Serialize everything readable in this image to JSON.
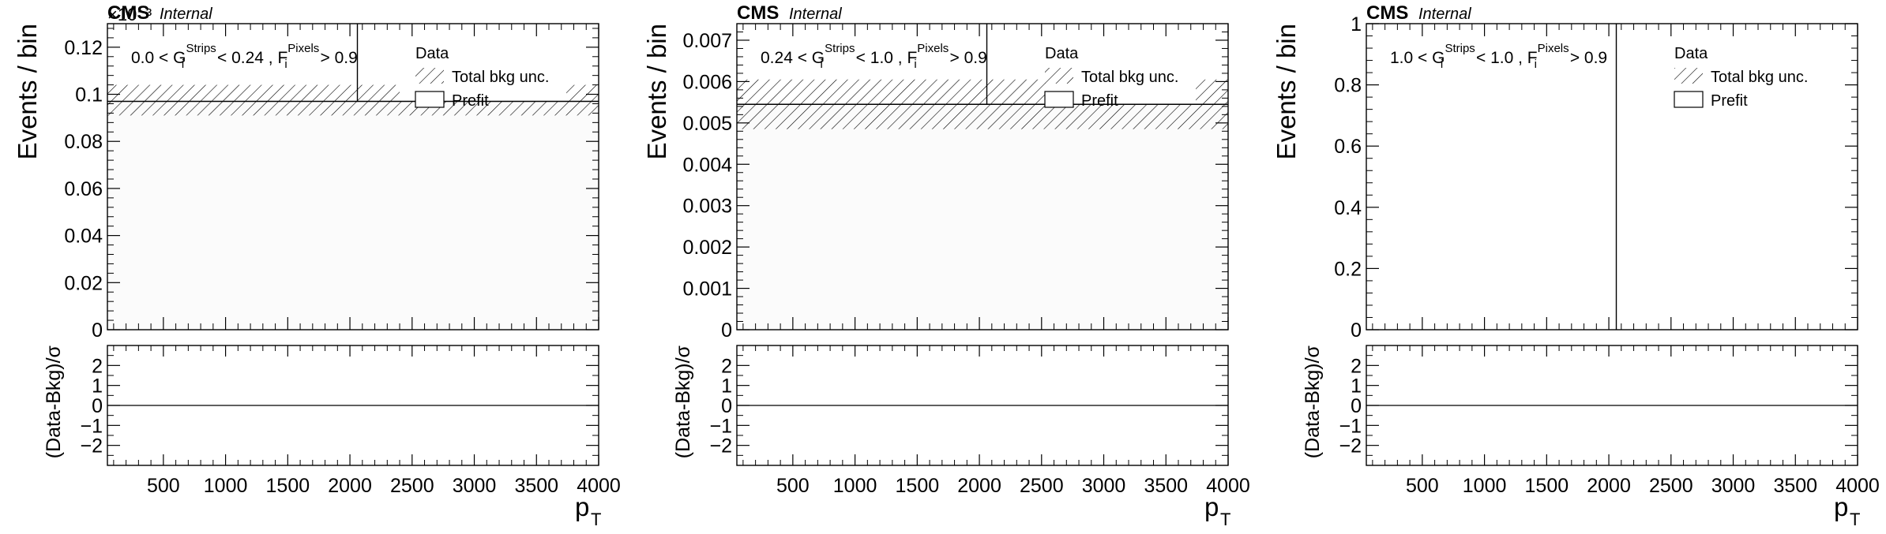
{
  "chart_data": [
    {
      "type": "bar",
      "experiment": "CMS",
      "status": "Internal",
      "exponent_label": "×10⁻³",
      "region_label": "0.0 < G_i^Strips < 0.24 , F_i^Pixels > 0.9",
      "region_parts": {
        "a": "0.0 < G",
        "sub1": "i",
        "sup1": "Strips",
        "b": " < 0.24 , F",
        "sub2": "i",
        "sup2": "Pixels",
        "c": " > 0.9"
      },
      "ylabel": "Events / bin",
      "xlabel": "p",
      "xlabel_sub": "T",
      "ratio_ylabel": "(Data-Bkg)/σ",
      "xlim": [
        50,
        4000
      ],
      "ylim": [
        0,
        0.13
      ],
      "yticks": [
        0,
        0.02,
        0.04,
        0.06,
        0.08,
        0.1,
        0.12
      ],
      "ytick_labels": [
        "0",
        "0.02",
        "0.04",
        "0.06",
        "0.08",
        "0.1",
        "0.12"
      ],
      "xticks": [
        500,
        1000,
        1500,
        2000,
        2500,
        3000,
        3500,
        4000
      ],
      "xtick_labels": [
        "500",
        "1000",
        "1500",
        "2000",
        "2500",
        "3000",
        "3500",
        "4000"
      ],
      "ratio_ylim": [
        -3,
        3
      ],
      "ratio_yticks": [
        -2,
        -1,
        0,
        1,
        2
      ],
      "ratio_ytick_labels": [
        "−2",
        "−1",
        "0",
        "1",
        "2"
      ],
      "prefit_value": 0.097,
      "unc_band": [
        0.091,
        0.104
      ],
      "band_gap": [
        2400,
        3740
      ],
      "data_line_x": 2060,
      "legend": [
        "Data",
        "Total bkg unc.",
        "Prefit"
      ],
      "legend_placement": "top-right"
    },
    {
      "type": "bar",
      "experiment": "CMS",
      "status": "Internal",
      "exponent_label": "",
      "region_label": "0.24 < G_i^Strips < 1.0 , F_i^Pixels > 0.9",
      "region_parts": {
        "a": "0.24 < G",
        "sub1": "i",
        "sup1": "Strips",
        "b": " < 1.0 , F",
        "sub2": "i",
        "sup2": "Pixels",
        "c": " > 0.9"
      },
      "ylabel": "Events / bin",
      "xlabel": "p",
      "xlabel_sub": "T",
      "ratio_ylabel": "(Data-Bkg)/σ",
      "xlim": [
        50,
        4000
      ],
      "ylim": [
        0,
        0.0074
      ],
      "yticks": [
        0,
        0.001,
        0.002,
        0.003,
        0.004,
        0.005,
        0.006,
        0.007
      ],
      "ytick_labels": [
        "0",
        "0.001",
        "0.002",
        "0.003",
        "0.004",
        "0.005",
        "0.006",
        "0.007"
      ],
      "xticks": [
        500,
        1000,
        1500,
        2000,
        2500,
        3000,
        3500,
        4000
      ],
      "xtick_labels": [
        "500",
        "1000",
        "1500",
        "2000",
        "2500",
        "3000",
        "3500",
        "4000"
      ],
      "ratio_ylim": [
        -3,
        3
      ],
      "ratio_yticks": [
        -2,
        -1,
        0,
        1,
        2
      ],
      "ratio_ytick_labels": [
        "−2",
        "−1",
        "0",
        "1",
        "2"
      ],
      "prefit_value": 0.00545,
      "unc_band": [
        0.00485,
        0.00605
      ],
      "band_gap": [
        2530,
        3740
      ],
      "data_line_x": 2060,
      "legend": [
        "Data",
        "Total bkg unc.",
        "Prefit"
      ],
      "legend_placement": "top-right"
    },
    {
      "type": "bar",
      "experiment": "CMS",
      "status": "Internal",
      "exponent_label": "",
      "region_label": "1.0 < G_i^Strips < 1.0 , F_i^Pixels > 0.9",
      "region_parts": {
        "a": "1.0 < G",
        "sub1": "i",
        "sup1": "Strips",
        "b": " < 1.0 , F",
        "sub2": "i",
        "sup2": "Pixels",
        "c": " > 0.9"
      },
      "ylabel": "Events / bin",
      "xlabel": "p",
      "xlabel_sub": "T",
      "ratio_ylabel": "(Data-Bkg)/σ",
      "xlim": [
        50,
        4000
      ],
      "ylim": [
        0,
        1
      ],
      "yticks": [
        0,
        0.2,
        0.4,
        0.6,
        0.8,
        1
      ],
      "ytick_labels": [
        "0",
        "0.2",
        "0.4",
        "0.6",
        "0.8",
        "1"
      ],
      "xticks": [
        500,
        1000,
        1500,
        2000,
        2500,
        3000,
        3500,
        4000
      ],
      "xtick_labels": [
        "500",
        "1000",
        "1500",
        "2000",
        "2500",
        "3000",
        "3500",
        "4000"
      ],
      "ratio_ylim": [
        -3,
        3
      ],
      "ratio_yticks": [
        -2,
        -1,
        0,
        1,
        2
      ],
      "ratio_ytick_labels": [
        "−2",
        "−1",
        "0",
        "1",
        "2"
      ],
      "prefit_value": null,
      "unc_band": null,
      "band_gap": null,
      "data_line_x": 2060,
      "legend": [
        "Data",
        "Total bkg unc.",
        "Prefit"
      ],
      "legend_placement": "top-right"
    }
  ]
}
